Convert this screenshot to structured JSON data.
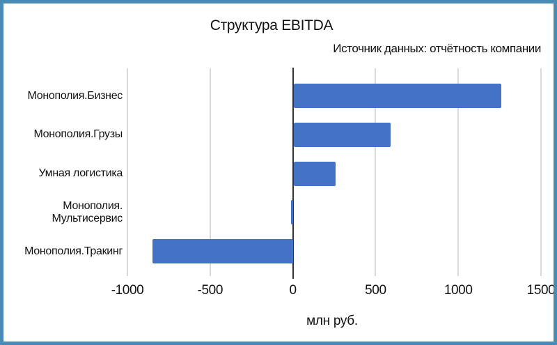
{
  "page": {
    "border_color": "#4a8bb5",
    "background_color": "#ffffff"
  },
  "chart_data": {
    "type": "bar",
    "orientation": "horizontal",
    "title": "Структура EBITDA",
    "subtitle": "Источник данных: отчётность компании",
    "xlabel": "млн руб.",
    "categories": [
      "Монополия.Бизнес",
      "Монополия.Грузы",
      "Умная логистика",
      "Монополия.\nМультисервис",
      "Монополия.Тракинг"
    ],
    "values": [
      1255,
      585,
      255,
      -10,
      -850
    ],
    "xlim": [
      -1000,
      1500
    ],
    "xticks": [
      -1000,
      -500,
      0,
      500,
      1000,
      1500
    ],
    "tick_labels": [
      "-1000",
      "-500",
      "0",
      "500",
      "1000",
      "1500"
    ],
    "bar_color": "#4472c4",
    "gridline_color": "#d9d9d9",
    "zero_axis_color": "#333333",
    "grid": "vertical-only",
    "legend": "none"
  }
}
